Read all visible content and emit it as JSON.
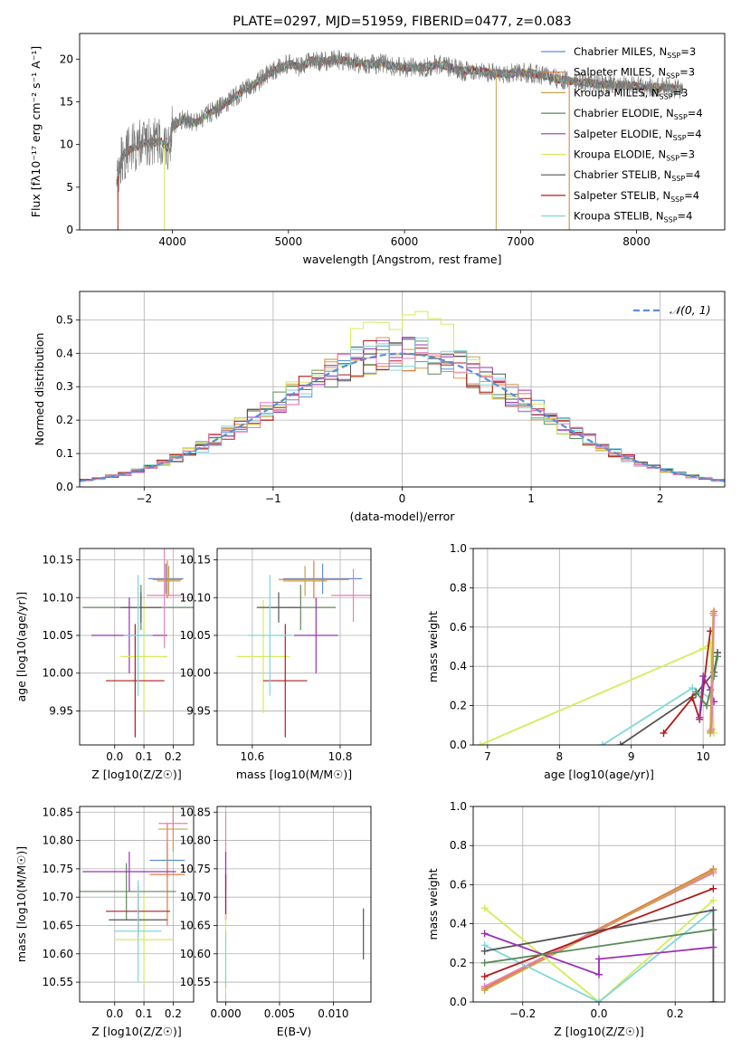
{
  "palette": {
    "chab_miles": "#5b8fd9",
    "salp_miles": "#e07b39",
    "krou_miles": "#c8a24a",
    "chab_elodie": "#5a8a5a",
    "salp_elodie": "#9b30b3",
    "krou_elodie": "#d8ea5a",
    "chab_stelib": "#555555",
    "salp_stelib": "#b01c1c",
    "krou_stelib": "#7fd8d8",
    "pink": "#e87fb8",
    "gauss": "#5b8fd9"
  },
  "chart_data": [
    {
      "id": "spectrum",
      "type": "line",
      "title": "PLATE=0297, MJD=51959, FIBERID=0477, z=0.083",
      "xlabel": "wavelength [Angstrom, rest frame]",
      "ylabel": "Flux [fλ10⁻¹⁷ erg cm⁻² s⁻¹ A⁻¹]",
      "xlim": [
        3200,
        8760
      ],
      "ylim": [
        0,
        23
      ],
      "xticks": [
        "4000",
        "5000",
        "6000",
        "7000",
        "8000"
      ],
      "yticks": [
        "0",
        "5",
        "10",
        "15",
        "20"
      ],
      "continuum": {
        "x": [
          3520,
          3560,
          3640,
          3700,
          3760,
          3840,
          3900,
          3960,
          4000,
          4100,
          4200,
          4300,
          4400,
          4500,
          4600,
          4700,
          4800,
          4900,
          5000,
          5100,
          5200,
          5300,
          5400,
          5500,
          5600,
          5700,
          5800,
          5900,
          6000,
          6100,
          6200,
          6300,
          6400,
          6500,
          6600,
          6700,
          6800,
          6900,
          7000,
          7100,
          7200,
          7300,
          7400,
          7500,
          7600,
          7700,
          7800,
          7900,
          8000,
          8100,
          8200,
          8300,
          8400
        ],
        "y": [
          5.5,
          8.5,
          9.5,
          9.8,
          10.2,
          10.2,
          10.4,
          9.5,
          12.0,
          13.0,
          12.5,
          13.5,
          14.3,
          15.2,
          16.2,
          17.0,
          18.0,
          18.8,
          19.5,
          19.0,
          19.8,
          19.7,
          20.0,
          19.8,
          19.5,
          19.4,
          19.5,
          19.2,
          19.0,
          19.0,
          19.1,
          19.4,
          19.0,
          18.6,
          18.7,
          18.5,
          18.3,
          18.3,
          18.4,
          18.3,
          18.1,
          17.7,
          17.5,
          17.3,
          17.2,
          17.0,
          17.1,
          16.9,
          16.8,
          16.7,
          16.7,
          16.6,
          16.4
        ]
      },
      "legend": [
        {
          "label": "Chabrier MILES, N",
          "sub": "SSP",
          "tail": "=3",
          "color": "#5b8fd9"
        },
        {
          "label": "Salpeter MILES, N",
          "sub": "SSP",
          "tail": "=3",
          "color": "#e07b39"
        },
        {
          "label": "Kroupa MILES, N",
          "sub": "SSP",
          "tail": "=3",
          "color": "#c8a24a"
        },
        {
          "label": "Chabrier ELODIE, N",
          "sub": "SSP",
          "tail": "=4",
          "color": "#5a8a5a"
        },
        {
          "label": "Salpeter ELODIE, N",
          "sub": "SSP",
          "tail": "=4",
          "color": "#9b30b3"
        },
        {
          "label": "Kroupa ELODIE, N",
          "sub": "SSP",
          "tail": "=3",
          "color": "#d8ea5a"
        },
        {
          "label": "Chabrier STELIB, N",
          "sub": "SSP",
          "tail": "=4",
          "color": "#555555"
        },
        {
          "label": "Salpeter STELIB, N",
          "sub": "SSP",
          "tail": "=4",
          "color": "#b01c1c"
        },
        {
          "label": "Kroupa STELIB, N",
          "sub": "SSP",
          "tail": "=4",
          "color": "#7fd8d8"
        }
      ]
    },
    {
      "id": "residuals",
      "type": "histogram",
      "xlabel": "(data-model)/error",
      "ylabel": "Normed distribution",
      "xlim": [
        -2.5,
        2.5
      ],
      "ylim": [
        0,
        0.585
      ],
      "xticks": [
        "−2",
        "−1",
        "0",
        "1",
        "2"
      ],
      "yticks": [
        "0.0",
        "0.1",
        "0.2",
        "0.3",
        "0.4",
        "0.5"
      ],
      "legend_label": "𝒩(0, 1)",
      "bin_width": 0.1
    },
    {
      "id": "age_vs_Z",
      "type": "errorbar",
      "xlabel": "Z [log10(Z/Z☉)]",
      "ylabel": "age  [log10(age/yr)]",
      "xlim": [
        -0.12,
        0.27
      ],
      "ylim": [
        9.905,
        10.165
      ],
      "xticks": [
        "0.0",
        "0.1",
        "0.2"
      ],
      "yticks": [
        "9.95",
        "10.00",
        "10.05",
        "10.10",
        "10.15"
      ],
      "points": [
        {
          "x": 0.175,
          "xerr": 0.06,
          "y": 10.125,
          "yerr": 0.02,
          "c": "#5b8fd9"
        },
        {
          "x": 0.18,
          "xerr": 0.05,
          "y": 10.124,
          "yerr": 0.025,
          "c": "#e07b39"
        },
        {
          "x": 0.185,
          "xerr": 0.04,
          "y": 10.122,
          "yerr": 0.02,
          "c": "#c8a24a"
        },
        {
          "x": 0.09,
          "xerr": 0.2,
          "y": 10.087,
          "yerr": 0.03,
          "c": "#5a8a5a"
        },
        {
          "x": 0.05,
          "xerr": 0.13,
          "y": 10.05,
          "yerr": 0.05,
          "c": "#9b30b3"
        },
        {
          "x": 0.1,
          "xerr": 0.08,
          "y": 10.022,
          "yerr": 0.075,
          "c": "#d8ea5a"
        },
        {
          "x": 0.09,
          "xerr": 0.07,
          "y": 10.087,
          "yerr": 0.02,
          "c": "#555555"
        },
        {
          "x": 0.07,
          "xerr": 0.1,
          "y": 9.99,
          "yerr": 0.075,
          "c": "#b01c1c"
        },
        {
          "x": 0.08,
          "xerr": 0.05,
          "y": 10.05,
          "yerr": 0.08,
          "c": "#7fd8d8"
        },
        {
          "x": 0.17,
          "xerr": 0.06,
          "y": 10.103,
          "yerr": 0.07,
          "c": "#e87fb8"
        }
      ]
    },
    {
      "id": "age_vs_mass",
      "type": "errorbar",
      "xlabel": "mass [log10(M/M☉)]",
      "ylabel": "",
      "xlim": [
        10.52,
        10.87
      ],
      "ylim": [
        9.905,
        10.165
      ],
      "xticks": [
        "10.6",
        "10.8"
      ],
      "yticks": [
        "9.95",
        "10.00",
        "10.05",
        "10.10",
        "10.15"
      ],
      "points": [
        {
          "x": 10.76,
          "xerr": 0.09,
          "y": 10.125,
          "yerr": 0.02,
          "c": "#5b8fd9"
        },
        {
          "x": 10.74,
          "xerr": 0.08,
          "y": 10.124,
          "yerr": 0.025,
          "c": "#e07b39"
        },
        {
          "x": 10.72,
          "xerr": 0.05,
          "y": 10.122,
          "yerr": 0.02,
          "c": "#c8a24a"
        },
        {
          "x": 10.71,
          "xerr": 0.08,
          "y": 10.087,
          "yerr": 0.03,
          "c": "#5a8a5a"
        },
        {
          "x": 10.745,
          "xerr": 0.05,
          "y": 10.05,
          "yerr": 0.05,
          "c": "#9b30b3"
        },
        {
          "x": 10.625,
          "xerr": 0.06,
          "y": 10.022,
          "yerr": 0.075,
          "c": "#d8ea5a"
        },
        {
          "x": 10.66,
          "xerr": 0.05,
          "y": 10.087,
          "yerr": 0.02,
          "c": "#555555"
        },
        {
          "x": 10.675,
          "xerr": 0.05,
          "y": 9.99,
          "yerr": 0.075,
          "c": "#b01c1c"
        },
        {
          "x": 10.64,
          "xerr": 0.05,
          "y": 10.05,
          "yerr": 0.08,
          "c": "#7fd8d8"
        },
        {
          "x": 10.83,
          "xerr": 0.05,
          "y": 10.103,
          "yerr": 0.035,
          "c": "#e87fb8"
        }
      ]
    },
    {
      "id": "weight_vs_age",
      "type": "line",
      "xlabel": "age  [log10(age/yr)]",
      "ylabel": "mass weight",
      "xlim": [
        6.8,
        10.3
      ],
      "ylim": [
        0,
        1.0
      ],
      "xticks": [
        "7",
        "8",
        "9",
        "10"
      ],
      "yticks": [
        "0.0",
        "0.2",
        "0.4",
        "0.6",
        "0.8",
        "1.0"
      ],
      "series": [
        {
          "c": "#d8ea5a",
          "x": [
            6.9,
            10.0,
            10.1,
            10.15
          ],
          "y": [
            0.0,
            0.49,
            0.52,
            0.06
          ]
        },
        {
          "c": "#7fd8d8",
          "x": [
            8.6,
            9.85,
            10.1,
            10.2
          ],
          "y": [
            0.0,
            0.29,
            0.24,
            0.47
          ]
        },
        {
          "c": "#555555",
          "x": [
            8.85,
            9.9,
            10.15,
            10.2
          ],
          "y": [
            0.0,
            0.26,
            0.37,
            0.47
          ]
        },
        {
          "c": "#b01c1c",
          "x": [
            9.45,
            9.85,
            9.95,
            10.1
          ],
          "y": [
            0.06,
            0.24,
            0.13,
            0.58
          ]
        },
        {
          "c": "#9b30b3",
          "x": [
            9.95,
            10.0,
            10.1,
            10.15
          ],
          "y": [
            0.14,
            0.35,
            0.28,
            0.22
          ]
        },
        {
          "c": "#5a8a5a",
          "x": [
            9.9,
            10.05,
            10.15,
            10.2
          ],
          "y": [
            0.27,
            0.2,
            0.35,
            0.45
          ]
        },
        {
          "c": "#e07b39",
          "x": [
            10.1,
            10.15
          ],
          "y": [
            0.07,
            0.68
          ]
        },
        {
          "c": "#e87fb8",
          "x": [
            10.12,
            10.15
          ],
          "y": [
            0.08,
            0.66
          ]
        },
        {
          "c": "#c8a24a",
          "x": [
            10.1,
            10.14
          ],
          "y": [
            0.06,
            0.67
          ]
        }
      ]
    },
    {
      "id": "mass_vs_Z",
      "type": "errorbar",
      "xlabel": "Z [log10(Z/Z☉)]",
      "ylabel": "mass [log10(M/M☉)]",
      "xlim": [
        -0.12,
        0.27
      ],
      "ylim": [
        10.515,
        10.86
      ],
      "xticks": [
        "0.0",
        "0.1",
        "0.2"
      ],
      "yticks": [
        "10.55",
        "10.60",
        "10.65",
        "10.70",
        "10.75",
        "10.80",
        "10.85"
      ],
      "points": [
        {
          "x": 0.18,
          "xerr": 0.06,
          "y": 10.765,
          "yerr": 0.03,
          "c": "#5b8fd9"
        },
        {
          "x": 0.18,
          "xerr": 0.06,
          "y": 10.74,
          "yerr": 0.09,
          "c": "#e07b39"
        },
        {
          "x": 0.2,
          "xerr": 0.05,
          "y": 10.82,
          "yerr": 0.04,
          "c": "#c8a24a"
        },
        {
          "x": 0.04,
          "xerr": 0.17,
          "y": 10.71,
          "yerr": 0.05,
          "c": "#5a8a5a"
        },
        {
          "x": 0.05,
          "xerr": 0.16,
          "y": 10.745,
          "yerr": 0.035,
          "c": "#9b30b3"
        },
        {
          "x": 0.1,
          "xerr": 0.1,
          "y": 10.625,
          "yerr": 0.08,
          "c": "#d8ea5a"
        },
        {
          "x": 0.08,
          "xerr": 0.1,
          "y": 10.66,
          "yerr": 0.02,
          "c": "#555555"
        },
        {
          "x": 0.08,
          "xerr": 0.11,
          "y": 10.675,
          "yerr": 0.045,
          "c": "#b01c1c"
        },
        {
          "x": 0.08,
          "xerr": 0.08,
          "y": 10.64,
          "yerr": 0.09,
          "c": "#7fd8d8"
        },
        {
          "x": 0.2,
          "xerr": 0.05,
          "y": 10.83,
          "yerr": 0.02,
          "c": "#e87fb8"
        }
      ]
    },
    {
      "id": "mass_vs_ebv",
      "type": "errorbar",
      "xlabel": "E(B-V)",
      "ylabel": "",
      "xlim": [
        -0.0008,
        0.0135
      ],
      "ylim": [
        10.515,
        10.86
      ],
      "xticks": [
        "0.000",
        "0.005",
        "0.010"
      ],
      "yticks": [
        "10.55",
        "10.60",
        "10.65",
        "10.70",
        "10.75",
        "10.80",
        "10.85"
      ],
      "points": [
        {
          "x": 0.0,
          "xerr": 0,
          "y": 10.78,
          "yerr": 0.07,
          "c": "#e87fb8"
        },
        {
          "x": 0.0,
          "xerr": 0,
          "y": 10.72,
          "yerr": 0.06,
          "c": "#9b30b3"
        },
        {
          "x": 0.0,
          "xerr": 0,
          "y": 10.7,
          "yerr": 0.04,
          "c": "#b01c1c"
        },
        {
          "x": 0.0,
          "xerr": 0,
          "y": 10.6,
          "yerr": 0.07,
          "c": "#d8ea5a"
        },
        {
          "x": 0.0,
          "xerr": 0,
          "y": 10.59,
          "yerr": 0.05,
          "c": "#7fd8d8"
        },
        {
          "x": 0.0128,
          "xerr": 0,
          "y": 10.635,
          "yerr": 0.045,
          "c": "#555555"
        }
      ]
    },
    {
      "id": "weight_vs_Z",
      "type": "line",
      "xlabel": "Z [log10(Z/Z☉)]",
      "ylabel": "mass weight",
      "xlim": [
        -0.33,
        0.33
      ],
      "ylim": [
        0,
        1.0
      ],
      "xticks": [
        "−0.2",
        "0.0",
        "0.2"
      ],
      "yticks": [
        "0.0",
        "0.2",
        "0.4",
        "0.6",
        "0.8",
        "1.0"
      ],
      "series": [
        {
          "c": "#e07b39",
          "x": [
            -0.3,
            0.3
          ],
          "y": [
            0.07,
            0.68
          ]
        },
        {
          "c": "#e87fb8",
          "x": [
            -0.3,
            0.3
          ],
          "y": [
            0.08,
            0.66
          ]
        },
        {
          "c": "#c8a24a",
          "x": [
            -0.3,
            0.3
          ],
          "y": [
            0.06,
            0.67
          ]
        },
        {
          "c": "#d8ea5a",
          "x": [
            -0.3,
            0.0,
            0.3
          ],
          "y": [
            0.48,
            0.0,
            0.52
          ]
        },
        {
          "c": "#7fd8d8",
          "x": [
            -0.3,
            0.0,
            0.3
          ],
          "y": [
            0.29,
            0.0,
            0.47
          ]
        },
        {
          "c": "#555555",
          "x": [
            -0.3,
            0.3,
            0.3
          ],
          "y": [
            0.26,
            0.47,
            0.0
          ]
        },
        {
          "c": "#b01c1c",
          "x": [
            -0.3,
            0.3
          ],
          "y": [
            0.13,
            0.58
          ]
        },
        {
          "c": "#9b30b3",
          "x": [
            -0.3,
            0.0,
            0.0,
            0.3
          ],
          "y": [
            0.35,
            0.14,
            0.22,
            0.28
          ]
        },
        {
          "c": "#5a8a5a",
          "x": [
            -0.3,
            0.3
          ],
          "y": [
            0.2,
            0.37
          ]
        }
      ]
    }
  ]
}
